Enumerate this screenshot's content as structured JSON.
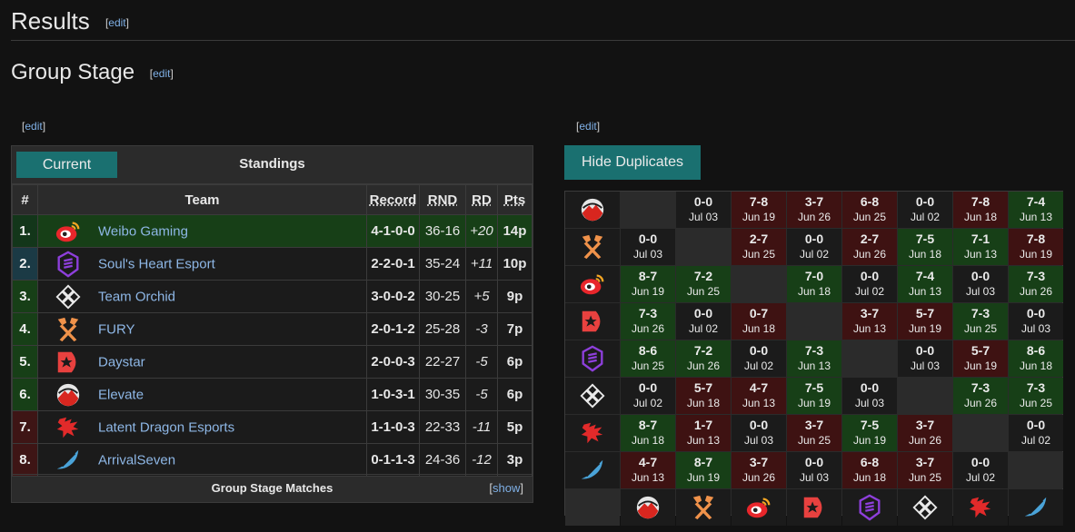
{
  "page": {
    "h2": "Results",
    "h3": "Group Stage",
    "edit_label": "edit",
    "left_edit": "edit",
    "right_edit": "edit"
  },
  "standings": {
    "current_label": "Current",
    "title": "Standings",
    "headers": {
      "rank": "#",
      "team": "Team",
      "record": "Record",
      "rnd": "RND",
      "rd": "RD",
      "pts": "Pts"
    },
    "rows": [
      {
        "rank": "1.",
        "team": "Weibo Gaming",
        "icon": "weibo-logo",
        "record": "4-1-0-0",
        "rnd": "36-16",
        "rd": "+20",
        "pts": "14p"
      },
      {
        "rank": "2.",
        "team": "Soul's Heart Esport",
        "icon": "souls-heart-logo",
        "record": "2-2-0-1",
        "rnd": "35-24",
        "rd": "+11",
        "pts": "10p"
      },
      {
        "rank": "3.",
        "team": "Team Orchid",
        "icon": "orchid-logo",
        "record": "3-0-0-2",
        "rnd": "30-25",
        "rd": "+5",
        "pts": "9p"
      },
      {
        "rank": "4.",
        "team": "FURY",
        "icon": "fury-logo",
        "record": "2-0-1-2",
        "rnd": "25-28",
        "rd": "-3",
        "pts": "7p"
      },
      {
        "rank": "5.",
        "team": "Daystar",
        "icon": "daystar-logo",
        "record": "2-0-0-3",
        "rnd": "22-27",
        "rd": "-5",
        "pts": "6p"
      },
      {
        "rank": "6.",
        "team": "Elevate",
        "icon": "elevate-logo",
        "record": "1-0-3-1",
        "rnd": "30-35",
        "rd": "-5",
        "pts": "6p"
      },
      {
        "rank": "7.",
        "team": "Latent Dragon Esports",
        "icon": "latent-dragon-logo",
        "record": "1-1-0-3",
        "rnd": "22-33",
        "rd": "-11",
        "pts": "5p"
      },
      {
        "rank": "8.",
        "team": "ArrivalSeven",
        "icon": "arrivalseven-logo",
        "record": "0-1-1-3",
        "rnd": "24-36",
        "rd": "-12",
        "pts": "3p"
      }
    ],
    "footer_title": "Group Stage Matches",
    "show_label": "show"
  },
  "crosstable": {
    "hide_label": "Hide Duplicates",
    "row_icons": [
      "elevate-logo",
      "fury-logo",
      "weibo-logo",
      "daystar-logo",
      "souls-heart-logo",
      "orchid-logo",
      "latent-dragon-logo",
      "arrivalseven-logo"
    ],
    "col_icons": [
      "elevate-logo",
      "fury-logo",
      "weibo-logo",
      "daystar-logo",
      "souls-heart-logo",
      "orchid-logo",
      "latent-dragon-logo",
      "arrivalseven-logo"
    ],
    "rows": [
      [
        null,
        {
          "s": "0-0",
          "d": "Jul 03",
          "r": "d"
        },
        {
          "s": "7-8",
          "d": "Jun 19",
          "r": "l"
        },
        {
          "s": "3-7",
          "d": "Jun 26",
          "r": "l"
        },
        {
          "s": "6-8",
          "d": "Jun 25",
          "r": "l"
        },
        {
          "s": "0-0",
          "d": "Jul 02",
          "r": "d"
        },
        {
          "s": "7-8",
          "d": "Jun 18",
          "r": "l"
        },
        {
          "s": "7-4",
          "d": "Jun 13",
          "r": "w"
        }
      ],
      [
        {
          "s": "0-0",
          "d": "Jul 03",
          "r": "d"
        },
        null,
        {
          "s": "2-7",
          "d": "Jun 25",
          "r": "l"
        },
        {
          "s": "0-0",
          "d": "Jul 02",
          "r": "d"
        },
        {
          "s": "2-7",
          "d": "Jun 26",
          "r": "l"
        },
        {
          "s": "7-5",
          "d": "Jun 18",
          "r": "w"
        },
        {
          "s": "7-1",
          "d": "Jun 13",
          "r": "w"
        },
        {
          "s": "7-8",
          "d": "Jun 19",
          "r": "l"
        }
      ],
      [
        {
          "s": "8-7",
          "d": "Jun 19",
          "r": "w"
        },
        {
          "s": "7-2",
          "d": "Jun 25",
          "r": "w"
        },
        null,
        {
          "s": "7-0",
          "d": "Jun 18",
          "r": "w"
        },
        {
          "s": "0-0",
          "d": "Jul 02",
          "r": "d"
        },
        {
          "s": "7-4",
          "d": "Jun 13",
          "r": "w"
        },
        {
          "s": "0-0",
          "d": "Jul 03",
          "r": "d"
        },
        {
          "s": "7-3",
          "d": "Jun 26",
          "r": "w"
        }
      ],
      [
        {
          "s": "7-3",
          "d": "Jun 26",
          "r": "w"
        },
        {
          "s": "0-0",
          "d": "Jul 02",
          "r": "d"
        },
        {
          "s": "0-7",
          "d": "Jun 18",
          "r": "l"
        },
        null,
        {
          "s": "3-7",
          "d": "Jun 13",
          "r": "l"
        },
        {
          "s": "5-7",
          "d": "Jun 19",
          "r": "l"
        },
        {
          "s": "7-3",
          "d": "Jun 25",
          "r": "w"
        },
        {
          "s": "0-0",
          "d": "Jul 03",
          "r": "d"
        }
      ],
      [
        {
          "s": "8-6",
          "d": "Jun 25",
          "r": "w"
        },
        {
          "s": "7-2",
          "d": "Jun 26",
          "r": "w"
        },
        {
          "s": "0-0",
          "d": "Jul 02",
          "r": "d"
        },
        {
          "s": "7-3",
          "d": "Jun 13",
          "r": "w"
        },
        null,
        {
          "s": "0-0",
          "d": "Jul 03",
          "r": "d"
        },
        {
          "s": "5-7",
          "d": "Jun 19",
          "r": "l"
        },
        {
          "s": "8-6",
          "d": "Jun 18",
          "r": "w"
        }
      ],
      [
        {
          "s": "0-0",
          "d": "Jul 02",
          "r": "d"
        },
        {
          "s": "5-7",
          "d": "Jun 18",
          "r": "l"
        },
        {
          "s": "4-7",
          "d": "Jun 13",
          "r": "l"
        },
        {
          "s": "7-5",
          "d": "Jun 19",
          "r": "w"
        },
        {
          "s": "0-0",
          "d": "Jul 03",
          "r": "d"
        },
        null,
        {
          "s": "7-3",
          "d": "Jun 26",
          "r": "w"
        },
        {
          "s": "7-3",
          "d": "Jun 25",
          "r": "w"
        }
      ],
      [
        {
          "s": "8-7",
          "d": "Jun 18",
          "r": "w"
        },
        {
          "s": "1-7",
          "d": "Jun 13",
          "r": "l"
        },
        {
          "s": "0-0",
          "d": "Jul 03",
          "r": "d"
        },
        {
          "s": "3-7",
          "d": "Jun 25",
          "r": "l"
        },
        {
          "s": "7-5",
          "d": "Jun 19",
          "r": "w"
        },
        {
          "s": "3-7",
          "d": "Jun 26",
          "r": "l"
        },
        null,
        {
          "s": "0-0",
          "d": "Jul 02",
          "r": "d"
        }
      ],
      [
        {
          "s": "4-7",
          "d": "Jun 13",
          "r": "l"
        },
        {
          "s": "8-7",
          "d": "Jun 19",
          "r": "w"
        },
        {
          "s": "3-7",
          "d": "Jun 26",
          "r": "l"
        },
        {
          "s": "0-0",
          "d": "Jul 03",
          "r": "d"
        },
        {
          "s": "6-8",
          "d": "Jun 18",
          "r": "l"
        },
        {
          "s": "3-7",
          "d": "Jun 25",
          "r": "l"
        },
        {
          "s": "0-0",
          "d": "Jul 02",
          "r": "d"
        },
        null
      ]
    ]
  },
  "colors": {
    "teal_button": "#1a7070",
    "win_cell": "#173f17",
    "loss_cell": "#3e1212",
    "link": "#7fb0e6"
  }
}
